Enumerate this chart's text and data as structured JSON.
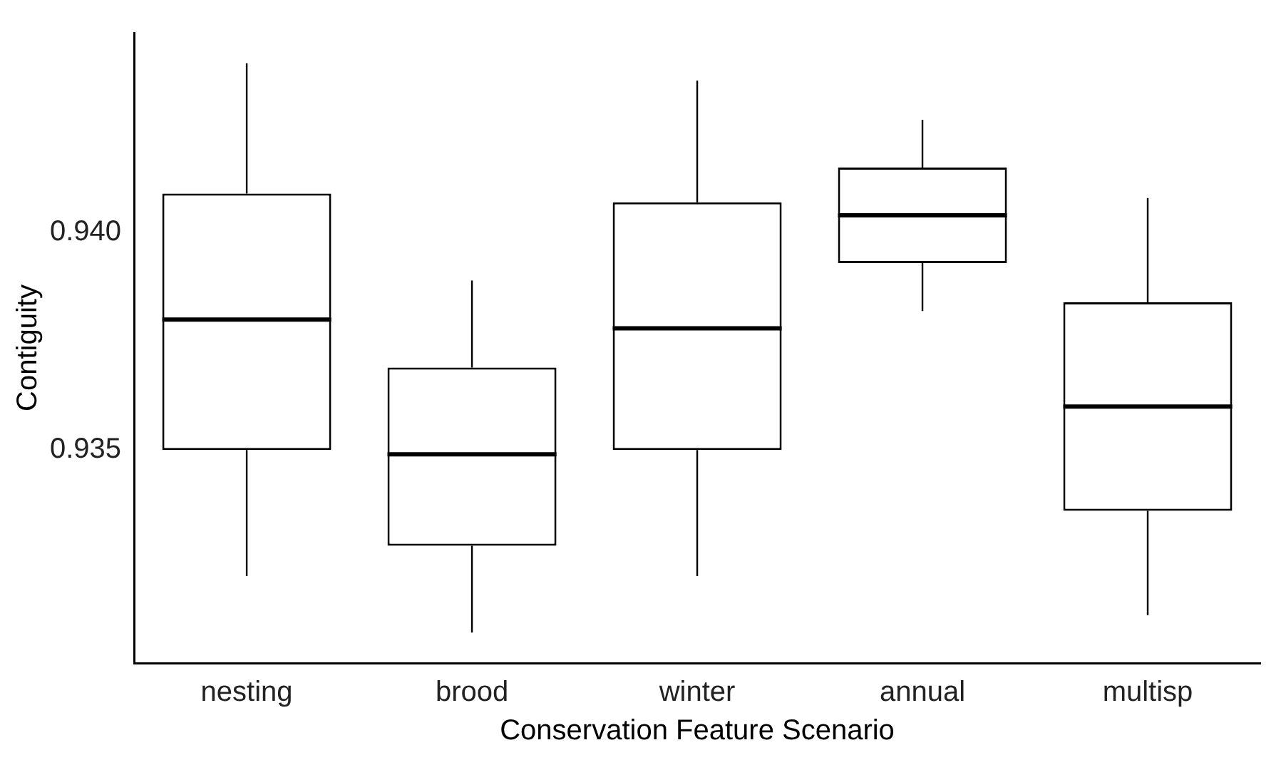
{
  "chart_data": {
    "type": "box",
    "xlabel": "Conservation Feature Scenario",
    "ylabel": "Contiguity",
    "categories": [
      "nesting",
      "brood",
      "winter",
      "annual",
      "multisp"
    ],
    "boxes": [
      {
        "low": 0.9321,
        "q1": 0.935,
        "median": 0.938,
        "q3": 0.9409,
        "high": 0.9439
      },
      {
        "low": 0.9308,
        "q1": 0.9328,
        "median": 0.9349,
        "q3": 0.9369,
        "high": 0.9389
      },
      {
        "low": 0.9321,
        "q1": 0.935,
        "median": 0.9378,
        "q3": 0.9407,
        "high": 0.9435
      },
      {
        "low": 0.9382,
        "q1": 0.9393,
        "median": 0.9404,
        "q3": 0.9415,
        "high": 0.9426
      },
      {
        "low": 0.9312,
        "q1": 0.9336,
        "median": 0.936,
        "q3": 0.9384,
        "high": 0.9408
      }
    ],
    "ylim": [
      0.9301,
      0.9446
    ],
    "yticks": [
      {
        "value": 0.935,
        "label": "0.935"
      },
      {
        "value": 0.94,
        "label": "0.940"
      }
    ],
    "grid": false,
    "legend": false
  }
}
